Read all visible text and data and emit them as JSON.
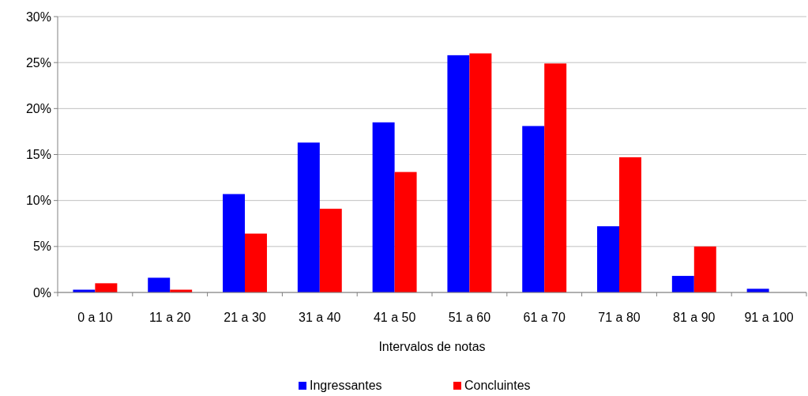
{
  "chart_data": {
    "type": "bar",
    "xlabel": "Intervalos de notas",
    "categories": [
      "0 a 10",
      "11 a 20",
      "21 a 30",
      "31 a 40",
      "41 a 50",
      "51 a 60",
      "61 a 70",
      "71 a 80",
      "81 a 90",
      "91 a 100"
    ],
    "series": [
      {
        "name": "Ingressantes",
        "color": "#0000ff",
        "values": [
          0.3,
          1.6,
          10.7,
          16.3,
          18.5,
          25.8,
          18.1,
          7.2,
          1.8,
          0.4
        ]
      },
      {
        "name": "Concluintes",
        "color": "#ff0000",
        "values": [
          1.0,
          0.3,
          6.4,
          9.1,
          13.1,
          26.0,
          24.9,
          14.7,
          5.0,
          0
        ]
      }
    ],
    "ylim": [
      0,
      30
    ],
    "yticks": [
      {
        "value": 0,
        "label": "0%"
      },
      {
        "value": 5,
        "label": "5%"
      },
      {
        "value": 10,
        "label": "10%"
      },
      {
        "value": 15,
        "label": "15%"
      },
      {
        "value": 20,
        "label": "20%"
      },
      {
        "value": 25,
        "label": "25%"
      },
      {
        "value": 30,
        "label": "30%"
      }
    ],
    "grid": "y",
    "legend": "bottom"
  }
}
